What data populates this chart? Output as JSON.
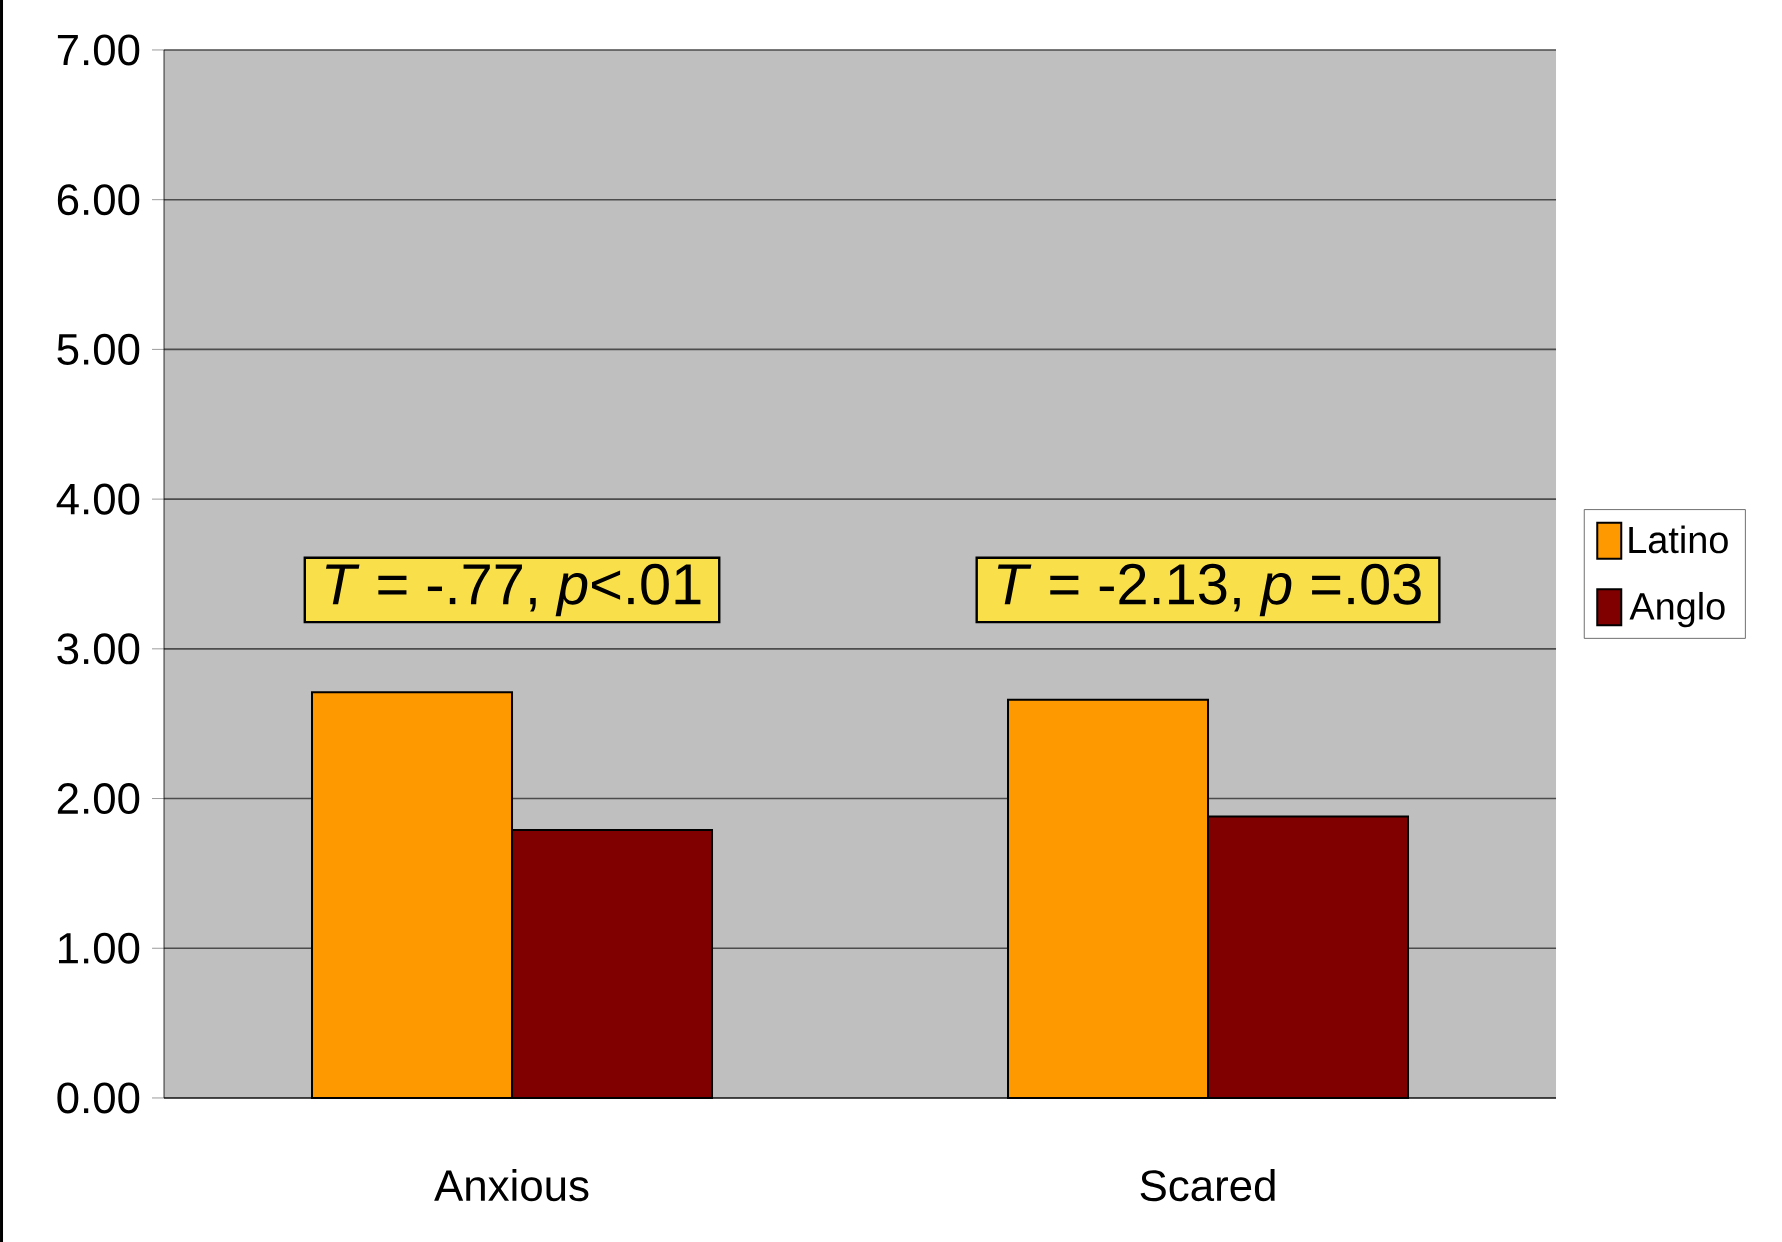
{
  "chart_data": {
    "type": "bar",
    "categories": [
      "Anxious",
      "Scared"
    ],
    "series": [
      {
        "name": "Latino",
        "color": "#ff9900",
        "values": [
          2.71,
          2.66
        ]
      },
      {
        "name": "Anglo",
        "color": "#800000",
        "values": [
          1.79,
          1.88
        ]
      }
    ],
    "ylim": [
      0,
      7
    ],
    "yticks": [
      {
        "value": 0,
        "label": "0.00"
      },
      {
        "value": 1,
        "label": "1.00"
      },
      {
        "value": 2,
        "label": "2.00"
      },
      {
        "value": 3,
        "label": "3.00"
      },
      {
        "value": 4,
        "label": "4.00"
      },
      {
        "value": 5,
        "label": "5.00"
      },
      {
        "value": 6,
        "label": "6.00"
      },
      {
        "value": 7,
        "label": "7.00"
      }
    ],
    "annotations": [
      "*T* = -.77, *p*<.01",
      "*T* = -2.13, *p* =.03"
    ],
    "grid": "y",
    "legend": "right"
  }
}
